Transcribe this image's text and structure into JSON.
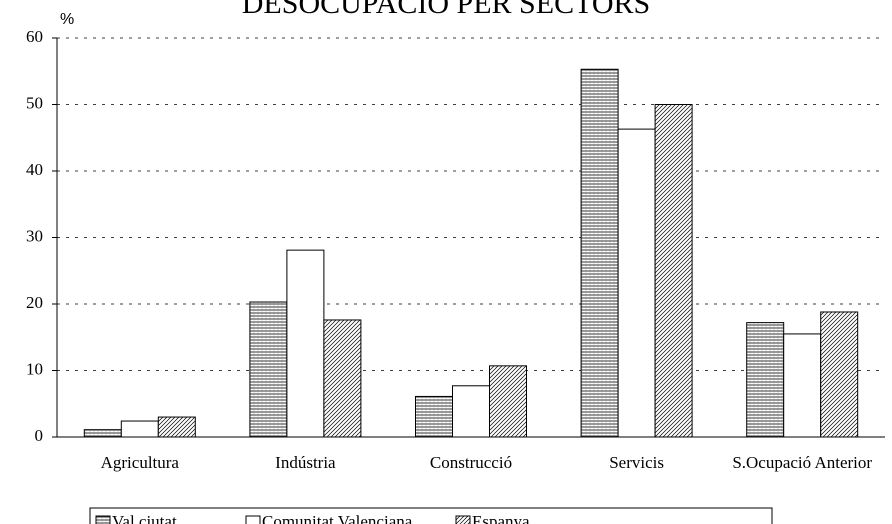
{
  "chart_data": {
    "type": "bar",
    "title": "DESOCUPACIÓ PER SECTORS",
    "y_label": "%",
    "categories": [
      "Agricultura",
      "Indústria",
      "Construcció",
      "Servicis",
      "S.Ocupació Anterior"
    ],
    "series": [
      {
        "name": "Val.ciutat",
        "pattern": "horizontal",
        "values": [
          1.1,
          20.3,
          6.1,
          55.3,
          17.2
        ]
      },
      {
        "name": "Comunitat Valenciana",
        "pattern": "none",
        "values": [
          2.4,
          28.1,
          7.7,
          46.3,
          15.5
        ]
      },
      {
        "name": "Espanya",
        "pattern": "diagonal",
        "values": [
          3.0,
          17.6,
          10.7,
          50.0,
          18.8
        ]
      }
    ],
    "ylim": [
      0,
      60
    ],
    "yticks": [
      0,
      10,
      20,
      30,
      40,
      50,
      60
    ],
    "grid": true,
    "legend": "bottom"
  }
}
